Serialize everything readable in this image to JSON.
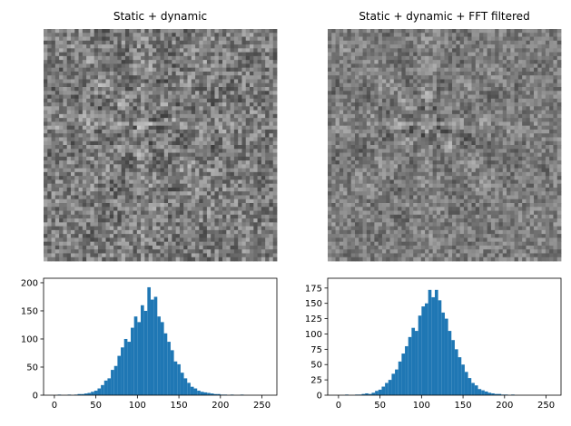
{
  "chart_data": [
    {
      "type": "image",
      "title": "Static + dynamic"
    },
    {
      "type": "image",
      "title": "Static + dynamic + FFT filtered"
    },
    {
      "type": "histogram",
      "color": "#1f77b4",
      "bins": [
        0,
        4,
        8,
        12,
        16,
        20,
        24,
        28,
        32,
        36,
        40,
        44,
        48,
        52,
        56,
        60,
        64,
        68,
        72,
        76,
        80,
        84,
        88,
        92,
        96,
        100,
        104,
        108,
        112,
        116,
        120,
        124,
        128,
        132,
        136,
        140,
        144,
        148,
        152,
        156,
        160,
        164,
        168,
        172,
        176,
        180,
        184,
        188,
        192,
        196,
        200,
        204,
        208,
        212,
        216,
        220,
        224,
        228,
        232,
        236,
        240,
        244,
        248,
        252,
        256
      ],
      "values": [
        0,
        1,
        0,
        0,
        1,
        0,
        1,
        2,
        2,
        3,
        4,
        6,
        8,
        12,
        18,
        26,
        30,
        45,
        52,
        70,
        85,
        100,
        95,
        120,
        140,
        130,
        160,
        150,
        192,
        170,
        175,
        140,
        130,
        110,
        95,
        80,
        60,
        55,
        40,
        30,
        22,
        15,
        12,
        8,
        6,
        5,
        4,
        3,
        2,
        2,
        1,
        1,
        0,
        1,
        0,
        0,
        1,
        0,
        0,
        0,
        0,
        0,
        0,
        0
      ],
      "xlim": [
        -13,
        268
      ],
      "xticks": [
        0,
        50,
        100,
        150,
        200,
        250
      ],
      "ylim": [
        0,
        208
      ],
      "yticks": [
        0,
        50,
        100,
        150,
        200
      ]
    },
    {
      "type": "histogram",
      "color": "#1f77b4",
      "bins": [
        0,
        4,
        8,
        12,
        16,
        20,
        24,
        28,
        32,
        36,
        40,
        44,
        48,
        52,
        56,
        60,
        64,
        68,
        72,
        76,
        80,
        84,
        88,
        92,
        96,
        100,
        104,
        108,
        112,
        116,
        120,
        124,
        128,
        132,
        136,
        140,
        144,
        148,
        152,
        156,
        160,
        164,
        168,
        172,
        176,
        180,
        184,
        188,
        192,
        196,
        200,
        204,
        208,
        212,
        216,
        220,
        224,
        228,
        232,
        236,
        240,
        244,
        248,
        252,
        256
      ],
      "values": [
        0,
        0,
        1,
        0,
        0,
        1,
        1,
        2,
        3,
        2,
        4,
        7,
        9,
        14,
        20,
        25,
        35,
        42,
        55,
        68,
        80,
        95,
        110,
        105,
        130,
        145,
        150,
        172,
        160,
        172,
        155,
        135,
        125,
        105,
        90,
        75,
        62,
        50,
        38,
        28,
        20,
        16,
        10,
        8,
        6,
        4,
        3,
        2,
        2,
        1,
        1,
        0,
        1,
        0,
        0,
        0,
        0,
        0,
        0,
        0,
        0,
        0,
        0,
        0
      ],
      "xlim": [
        -13,
        268
      ],
      "xticks": [
        0,
        50,
        100,
        150,
        200,
        250
      ],
      "ylim": [
        0,
        191
      ],
      "yticks": [
        0,
        25,
        50,
        75,
        100,
        125,
        150,
        175
      ]
    }
  ]
}
